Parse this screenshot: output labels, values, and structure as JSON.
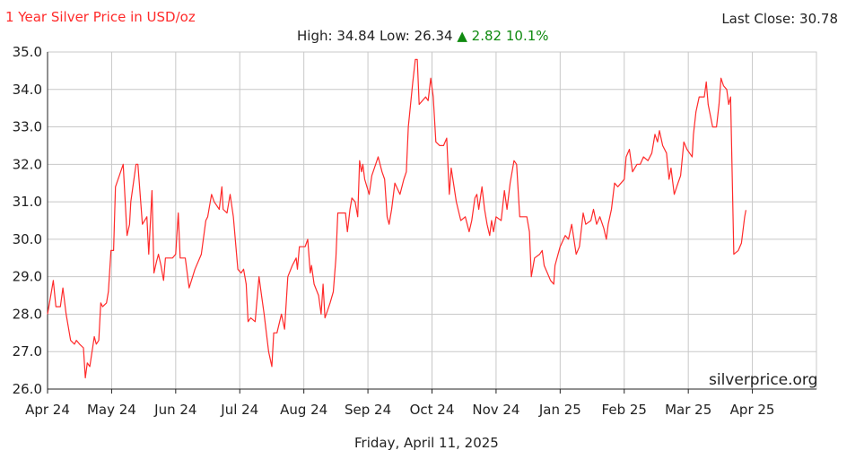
{
  "header": {
    "title": "1 Year Silver Price in USD/oz",
    "last_close_label": "Last Close:",
    "last_close_value": "30.78",
    "high_label": "High:",
    "high_value": "34.84",
    "low_label": "Low:",
    "low_value": "26.34",
    "change_arrow": "▲",
    "change_value": "2.82",
    "change_pct": "10.1%"
  },
  "footer": {
    "date": "Friday, April 11, 2025"
  },
  "watermark": "silverprice.org",
  "colors": {
    "line": "#ff2a2a",
    "title": "#ff2a2a",
    "up": "#108a10",
    "grid": "#c8c8c8",
    "axis": "#222222"
  },
  "chart_data": {
    "type": "line",
    "title": "1 Year Silver Price in USD/oz",
    "xlabel": "",
    "ylabel": "",
    "xlim": [
      0,
      12
    ],
    "ylim": [
      26.0,
      35.0
    ],
    "grid": true,
    "legend": "none",
    "x_ticks": [
      "Apr 24",
      "May 24",
      "Jun 24",
      "Jul 24",
      "Aug 24",
      "Sep 24",
      "Oct 24",
      "Nov 24",
      "Jan 25",
      "Feb 25",
      "Mar 25",
      "Apr 25"
    ],
    "x_tick_positions": [
      0,
      1,
      2,
      3,
      4,
      5,
      6,
      7,
      8,
      9,
      10,
      11
    ],
    "y_ticks": [
      26.0,
      27.0,
      28.0,
      29.0,
      30.0,
      31.0,
      32.0,
      33.0,
      34.0,
      35.0
    ],
    "y_tick_labels": [
      "26.0",
      "27.0",
      "28.0",
      "29.0",
      "30.0",
      "31.0",
      "32.0",
      "33.0",
      "34.0",
      "35.0"
    ],
    "series": [
      {
        "values": [
          [
            0.0,
            28.0
          ],
          [
            0.06,
            28.6
          ],
          [
            0.09,
            28.9
          ],
          [
            0.13,
            28.2
          ],
          [
            0.2,
            28.2
          ],
          [
            0.24,
            28.7
          ],
          [
            0.29,
            28.0
          ],
          [
            0.36,
            27.3
          ],
          [
            0.42,
            27.2
          ],
          [
            0.45,
            27.3
          ],
          [
            0.5,
            27.2
          ],
          [
            0.56,
            27.1
          ],
          [
            0.59,
            26.3
          ],
          [
            0.62,
            26.7
          ],
          [
            0.66,
            26.6
          ],
          [
            0.73,
            27.4
          ],
          [
            0.76,
            27.2
          ],
          [
            0.8,
            27.3
          ],
          [
            0.83,
            28.3
          ],
          [
            0.86,
            28.2
          ],
          [
            0.92,
            28.3
          ],
          [
            0.95,
            28.6
          ],
          [
            0.99,
            29.7
          ],
          [
            1.03,
            29.7
          ],
          [
            1.06,
            31.4
          ],
          [
            1.12,
            31.7
          ],
          [
            1.18,
            32.0
          ],
          [
            1.24,
            30.1
          ],
          [
            1.28,
            30.4
          ],
          [
            1.3,
            31.0
          ],
          [
            1.38,
            32.0
          ],
          [
            1.41,
            32.0
          ],
          [
            1.48,
            30.4
          ],
          [
            1.55,
            30.6
          ],
          [
            1.58,
            29.6
          ],
          [
            1.63,
            31.3
          ],
          [
            1.66,
            29.1
          ],
          [
            1.7,
            29.4
          ],
          [
            1.73,
            29.6
          ],
          [
            1.77,
            29.3
          ],
          [
            1.81,
            28.9
          ],
          [
            1.84,
            29.5
          ],
          [
            1.95,
            29.5
          ],
          [
            2.0,
            29.6
          ],
          [
            2.04,
            30.7
          ],
          [
            2.07,
            29.5
          ],
          [
            2.15,
            29.5
          ],
          [
            2.21,
            28.7
          ],
          [
            2.3,
            29.2
          ],
          [
            2.4,
            29.6
          ],
          [
            2.47,
            30.5
          ],
          [
            2.5,
            30.6
          ],
          [
            2.56,
            31.2
          ],
          [
            2.6,
            31.0
          ],
          [
            2.68,
            30.8
          ],
          [
            2.72,
            31.4
          ],
          [
            2.74,
            30.8
          ],
          [
            2.8,
            30.7
          ],
          [
            2.85,
            31.2
          ],
          [
            2.9,
            30.6
          ],
          [
            2.97,
            29.2
          ],
          [
            3.02,
            29.1
          ],
          [
            3.06,
            29.2
          ],
          [
            3.1,
            28.8
          ],
          [
            3.13,
            27.8
          ],
          [
            3.17,
            27.9
          ],
          [
            3.24,
            27.8
          ],
          [
            3.3,
            29.0
          ],
          [
            3.34,
            28.5
          ],
          [
            3.38,
            28.0
          ],
          [
            3.45,
            27.0
          ],
          [
            3.5,
            26.6
          ],
          [
            3.53,
            27.5
          ],
          [
            3.58,
            27.5
          ],
          [
            3.65,
            28.0
          ],
          [
            3.7,
            27.6
          ],
          [
            3.75,
            29.0
          ],
          [
            3.82,
            29.3
          ],
          [
            3.88,
            29.5
          ],
          [
            3.9,
            29.2
          ],
          [
            3.93,
            29.8
          ],
          [
            4.02,
            29.8
          ],
          [
            4.06,
            30.0
          ],
          [
            4.1,
            29.1
          ],
          [
            4.12,
            29.3
          ],
          [
            4.16,
            28.8
          ],
          [
            4.23,
            28.5
          ],
          [
            4.27,
            28.0
          ],
          [
            4.3,
            28.8
          ],
          [
            4.33,
            27.9
          ],
          [
            4.37,
            28.1
          ],
          [
            4.41,
            28.3
          ],
          [
            4.46,
            28.6
          ],
          [
            4.5,
            29.5
          ],
          [
            4.53,
            30.7
          ],
          [
            4.65,
            30.7
          ],
          [
            4.68,
            30.2
          ],
          [
            4.72,
            30.8
          ],
          [
            4.75,
            31.1
          ],
          [
            4.8,
            31.0
          ],
          [
            4.84,
            30.6
          ],
          [
            4.87,
            32.1
          ],
          [
            4.9,
            31.8
          ],
          [
            4.92,
            32.0
          ],
          [
            4.95,
            31.6
          ],
          [
            5.02,
            31.2
          ],
          [
            5.06,
            31.7
          ],
          [
            5.12,
            32.0
          ],
          [
            5.16,
            32.2
          ],
          [
            5.22,
            31.8
          ],
          [
            5.26,
            31.6
          ],
          [
            5.3,
            30.6
          ],
          [
            5.33,
            30.4
          ],
          [
            5.37,
            30.8
          ],
          [
            5.42,
            31.5
          ],
          [
            5.5,
            31.2
          ],
          [
            5.56,
            31.6
          ],
          [
            5.6,
            31.8
          ],
          [
            5.63,
            33.0
          ],
          [
            5.7,
            34.2
          ],
          [
            5.74,
            34.8
          ],
          [
            5.77,
            34.8
          ],
          [
            5.8,
            33.6
          ],
          [
            5.85,
            33.7
          ],
          [
            5.9,
            33.8
          ],
          [
            5.94,
            33.7
          ],
          [
            5.98,
            34.3
          ],
          [
            6.02,
            33.8
          ],
          [
            6.06,
            32.6
          ],
          [
            6.12,
            32.5
          ],
          [
            6.18,
            32.5
          ],
          [
            6.23,
            32.7
          ],
          [
            6.27,
            31.2
          ],
          [
            6.3,
            31.9
          ],
          [
            6.38,
            31.0
          ],
          [
            6.45,
            30.5
          ],
          [
            6.52,
            30.6
          ],
          [
            6.58,
            30.2
          ],
          [
            6.62,
            30.5
          ],
          [
            6.67,
            31.1
          ],
          [
            6.7,
            31.2
          ],
          [
            6.73,
            30.8
          ],
          [
            6.78,
            31.4
          ],
          [
            6.82,
            30.8
          ],
          [
            6.86,
            30.4
          ],
          [
            6.9,
            30.1
          ],
          [
            6.93,
            30.5
          ],
          [
            6.96,
            30.2
          ],
          [
            7.0,
            30.6
          ],
          [
            7.08,
            30.5
          ],
          [
            7.13,
            31.3
          ],
          [
            7.17,
            30.8
          ],
          [
            7.22,
            31.5
          ],
          [
            7.28,
            32.1
          ],
          [
            7.32,
            32.0
          ],
          [
            7.37,
            30.6
          ],
          [
            7.48,
            30.6
          ],
          [
            7.52,
            30.2
          ],
          [
            7.55,
            29.0
          ],
          [
            7.6,
            29.5
          ],
          [
            7.68,
            29.6
          ],
          [
            7.72,
            29.7
          ],
          [
            7.75,
            29.3
          ],
          [
            7.8,
            29.1
          ],
          [
            7.85,
            28.9
          ],
          [
            7.9,
            28.8
          ],
          [
            7.92,
            29.3
          ],
          [
            8.0,
            29.8
          ],
          [
            8.08,
            30.1
          ],
          [
            8.13,
            30.0
          ],
          [
            8.18,
            30.4
          ],
          [
            8.25,
            29.6
          ],
          [
            8.3,
            29.8
          ],
          [
            8.36,
            30.7
          ],
          [
            8.4,
            30.4
          ],
          [
            8.48,
            30.5
          ],
          [
            8.52,
            30.8
          ],
          [
            8.57,
            30.4
          ],
          [
            8.62,
            30.6
          ],
          [
            8.68,
            30.3
          ],
          [
            8.72,
            30.0
          ],
          [
            8.75,
            30.4
          ],
          [
            8.8,
            30.8
          ],
          [
            8.85,
            31.5
          ],
          [
            8.9,
            31.4
          ],
          [
            8.95,
            31.5
          ],
          [
            9.0,
            31.6
          ],
          [
            9.03,
            32.2
          ],
          [
            9.08,
            32.4
          ],
          [
            9.13,
            31.8
          ],
          [
            9.2,
            32.0
          ],
          [
            9.25,
            32.0
          ],
          [
            9.3,
            32.2
          ],
          [
            9.37,
            32.1
          ],
          [
            9.43,
            32.3
          ],
          [
            9.48,
            32.8
          ],
          [
            9.52,
            32.6
          ],
          [
            9.55,
            32.9
          ],
          [
            9.6,
            32.5
          ],
          [
            9.66,
            32.3
          ],
          [
            9.7,
            31.6
          ],
          [
            9.73,
            31.9
          ],
          [
            9.78,
            31.2
          ],
          [
            9.84,
            31.5
          ],
          [
            9.88,
            31.7
          ],
          [
            9.93,
            32.6
          ],
          [
            9.98,
            32.4
          ],
          [
            10.02,
            32.3
          ],
          [
            10.06,
            32.2
          ],
          [
            10.08,
            32.8
          ],
          [
            10.12,
            33.4
          ],
          [
            10.17,
            33.8
          ],
          [
            10.25,
            33.8
          ],
          [
            10.28,
            34.2
          ],
          [
            10.31,
            33.6
          ],
          [
            10.38,
            33.0
          ],
          [
            10.44,
            33.0
          ],
          [
            10.48,
            33.6
          ],
          [
            10.51,
            34.3
          ],
          [
            10.55,
            34.1
          ],
          [
            10.6,
            34.0
          ],
          [
            10.63,
            33.6
          ],
          [
            10.66,
            33.8
          ],
          [
            10.71,
            29.6
          ],
          [
            10.78,
            29.7
          ],
          [
            10.83,
            29.9
          ],
          [
            10.88,
            30.6
          ],
          [
            10.9,
            30.78
          ]
        ]
      }
    ]
  }
}
